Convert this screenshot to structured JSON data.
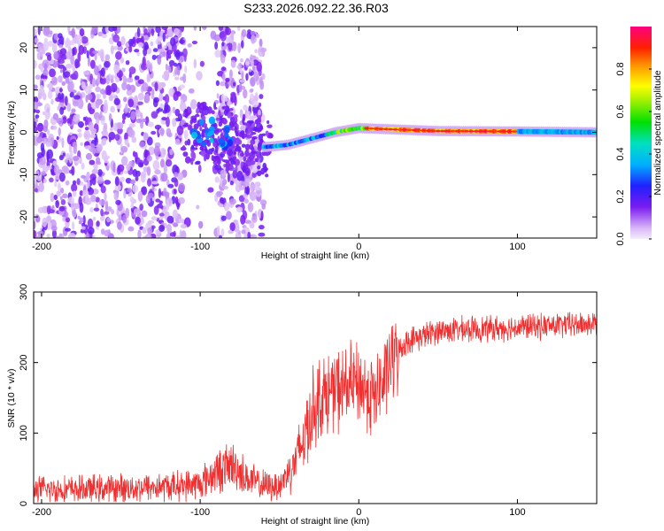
{
  "title": "S233.2026.092.22.36.R03",
  "chart_data": [
    {
      "type": "heatmap",
      "name": "spectrogram",
      "xlabel": "Height of straight line (km)",
      "ylabel": "Frequency (Hz)",
      "xlim": [
        -205,
        150
      ],
      "ylim": [
        -25,
        25
      ],
      "xticks": [
        -200,
        -100,
        0,
        100
      ],
      "yticks": [
        -20,
        -10,
        0,
        10,
        20
      ],
      "colorbar": {
        "label": "Normalized spectral amplitude",
        "range": [
          0,
          1
        ],
        "ticks": [
          0.0,
          0.2,
          0.4,
          0.6,
          0.8
        ]
      },
      "signal_track": [
        {
          "x": -105,
          "f": -1.0
        },
        {
          "x": -95,
          "f": 0.5
        },
        {
          "x": -85,
          "f": -1.0
        },
        {
          "x": -60,
          "f": -3.5
        },
        {
          "x": -45,
          "f": -3.0
        },
        {
          "x": -30,
          "f": -1.5
        },
        {
          "x": -15,
          "f": 0.0
        },
        {
          "x": 0,
          "f": 1.0
        },
        {
          "x": 50,
          "f": 0.3
        },
        {
          "x": 100,
          "f": 0.2
        },
        {
          "x": 150,
          "f": 0.0
        }
      ]
    },
    {
      "type": "line",
      "name": "snr",
      "xlabel": "Height of straight line (km)",
      "ylabel": "SNR (10 * v/v)",
      "xlim": [
        -205,
        150
      ],
      "ylim": [
        0,
        300
      ],
      "xticks": [
        -200,
        -100,
        0,
        100
      ],
      "yticks": [
        0,
        100,
        200,
        300
      ],
      "color": "#f03030",
      "series": [
        {
          "name": "SNR",
          "x": [
            -205,
            -180,
            -150,
            -120,
            -100,
            -90,
            -80,
            -70,
            -60,
            -50,
            -40,
            -35,
            -30,
            -25,
            -20,
            -10,
            0,
            5,
            10,
            15,
            20,
            30,
            50,
            100,
            150
          ],
          "values": [
            20,
            20,
            22,
            24,
            28,
            45,
            55,
            35,
            25,
            25,
            60,
            90,
            130,
            150,
            155,
            165,
            170,
            160,
            150,
            170,
            200,
            230,
            245,
            250,
            255
          ]
        }
      ]
    }
  ]
}
